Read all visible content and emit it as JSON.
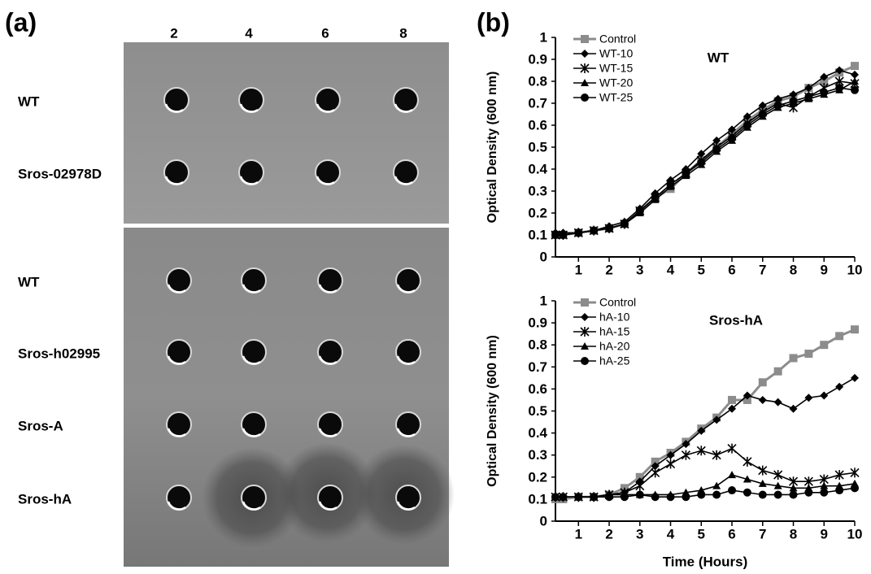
{
  "panel_a": {
    "label": "(a)",
    "columns": [
      "2",
      "4",
      "6",
      "8"
    ],
    "plate_1_rows": [
      "WT",
      "Sros-02978D"
    ],
    "plate_2_rows": [
      "WT",
      "Sros-h02995",
      "Sros-A",
      "Sros-hA"
    ]
  },
  "panel_b": {
    "label": "(b)"
  },
  "chart_data": [
    {
      "type": "line",
      "title": "WT",
      "y_label": "Optical Density (600 nm)",
      "x": [
        0.25,
        0.5,
        1,
        1.5,
        2,
        2.5,
        3,
        3.5,
        4,
        4.5,
        5,
        5.5,
        6,
        6.5,
        7,
        7.5,
        8,
        8.5,
        9,
        9.5,
        10
      ],
      "xlim": [
        0.25,
        10
      ],
      "xticks": [
        1,
        2,
        3,
        4,
        5,
        6,
        7,
        8,
        9,
        10
      ],
      "ylim": [
        0,
        1
      ],
      "yticks": [
        0,
        0.1,
        0.2,
        0.3,
        0.4,
        0.5,
        0.6,
        0.7,
        0.8,
        0.9,
        1
      ],
      "legend": "top-left",
      "series": [
        {
          "name": "Control",
          "color": "#8c8c8c",
          "marker": "square",
          "values": [
            0.1,
            0.1,
            0.11,
            0.12,
            0.13,
            0.15,
            0.21,
            0.27,
            0.31,
            0.38,
            0.44,
            0.5,
            0.56,
            0.62,
            0.67,
            0.71,
            0.73,
            0.77,
            0.8,
            0.84,
            0.87
          ]
        },
        {
          "name": "WT-10",
          "color": "#000000",
          "marker": "diamond",
          "values": [
            0.11,
            0.11,
            0.11,
            0.12,
            0.14,
            0.16,
            0.22,
            0.29,
            0.35,
            0.4,
            0.47,
            0.53,
            0.58,
            0.64,
            0.69,
            0.72,
            0.74,
            0.77,
            0.82,
            0.85,
            0.83
          ]
        },
        {
          "name": "WT-15",
          "color": "#000000",
          "marker": "star",
          "values": [
            0.1,
            0.1,
            0.11,
            0.12,
            0.13,
            0.15,
            0.21,
            0.27,
            0.33,
            0.38,
            0.44,
            0.5,
            0.55,
            0.61,
            0.66,
            0.7,
            0.68,
            0.73,
            0.77,
            0.8,
            0.79
          ]
        },
        {
          "name": "WT-20",
          "color": "#000000",
          "marker": "triangle",
          "values": [
            0.1,
            0.1,
            0.11,
            0.12,
            0.13,
            0.15,
            0.2,
            0.26,
            0.32,
            0.37,
            0.42,
            0.48,
            0.53,
            0.59,
            0.64,
            0.68,
            0.7,
            0.72,
            0.74,
            0.76,
            0.8
          ]
        },
        {
          "name": "WT-25",
          "color": "#000000",
          "marker": "circle",
          "values": [
            0.1,
            0.1,
            0.11,
            0.12,
            0.13,
            0.15,
            0.21,
            0.27,
            0.33,
            0.38,
            0.43,
            0.49,
            0.54,
            0.6,
            0.65,
            0.69,
            0.71,
            0.73,
            0.75,
            0.77,
            0.76
          ]
        }
      ]
    },
    {
      "type": "line",
      "title": "Sros-hA",
      "y_label": "Optical Density (600 nm)",
      "x_label": "Time (Hours)",
      "x": [
        0.25,
        0.5,
        1,
        1.5,
        2,
        2.5,
        3,
        3.5,
        4,
        4.5,
        5,
        5.5,
        6,
        6.5,
        7,
        7.5,
        8,
        8.5,
        9,
        9.5,
        10
      ],
      "xlim": [
        0.25,
        10
      ],
      "xticks": [
        1,
        2,
        3,
        4,
        5,
        6,
        7,
        8,
        9,
        10
      ],
      "ylim": [
        0,
        1
      ],
      "yticks": [
        0,
        0.1,
        0.2,
        0.3,
        0.4,
        0.5,
        0.6,
        0.7,
        0.8,
        0.9,
        1
      ],
      "legend": "top-left",
      "series": [
        {
          "name": "Control",
          "color": "#8c8c8c",
          "marker": "square",
          "values": [
            0.1,
            0.1,
            0.11,
            0.11,
            0.12,
            0.15,
            0.2,
            0.27,
            0.31,
            0.36,
            0.42,
            0.47,
            0.55,
            0.55,
            0.63,
            0.68,
            0.74,
            0.76,
            0.8,
            0.84,
            0.87
          ]
        },
        {
          "name": "hA-10",
          "color": "#000000",
          "marker": "diamond",
          "values": [
            0.11,
            0.11,
            0.11,
            0.11,
            0.12,
            0.13,
            0.18,
            0.25,
            0.3,
            0.35,
            0.41,
            0.46,
            0.51,
            0.57,
            0.55,
            0.54,
            0.51,
            0.56,
            0.57,
            0.61,
            0.65
          ]
        },
        {
          "name": "hA-15",
          "color": "#000000",
          "marker": "star",
          "values": [
            0.11,
            0.11,
            0.11,
            0.11,
            0.12,
            0.13,
            0.16,
            0.22,
            0.26,
            0.3,
            0.32,
            0.3,
            0.33,
            0.27,
            0.23,
            0.21,
            0.18,
            0.18,
            0.19,
            0.21,
            0.22
          ]
        },
        {
          "name": "hA-20",
          "color": "#000000",
          "marker": "triangle",
          "values": [
            0.11,
            0.11,
            0.11,
            0.11,
            0.12,
            0.12,
            0.12,
            0.12,
            0.12,
            0.13,
            0.14,
            0.16,
            0.21,
            0.19,
            0.17,
            0.16,
            0.15,
            0.15,
            0.16,
            0.16,
            0.17
          ]
        },
        {
          "name": "hA-25",
          "color": "#000000",
          "marker": "circle",
          "values": [
            0.11,
            0.11,
            0.11,
            0.11,
            0.11,
            0.11,
            0.12,
            0.11,
            0.11,
            0.11,
            0.12,
            0.12,
            0.14,
            0.13,
            0.12,
            0.12,
            0.12,
            0.13,
            0.13,
            0.14,
            0.15
          ]
        }
      ]
    }
  ]
}
